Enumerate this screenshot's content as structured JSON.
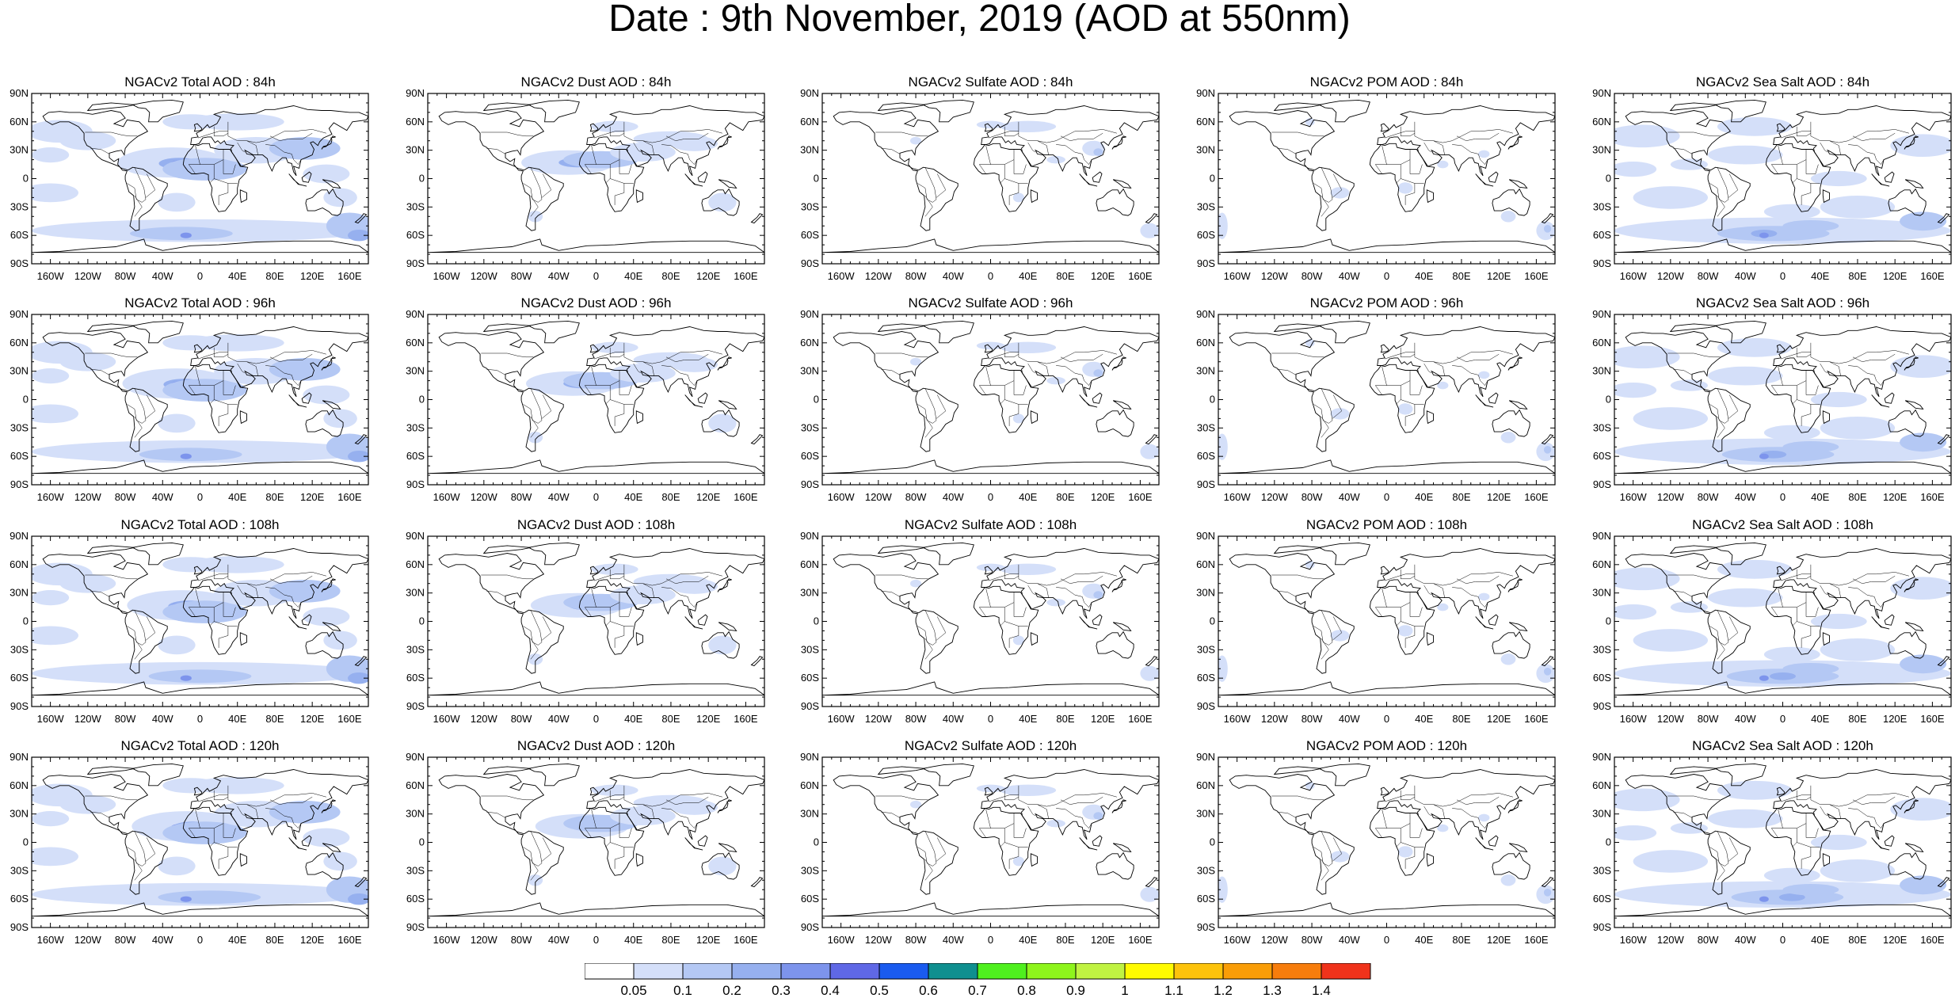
{
  "title": "Date : 9th November, 2019 (AOD at 550nm)",
  "lat_labels": [
    "90N",
    "60N",
    "30N",
    "0",
    "30S",
    "60S",
    "90S"
  ],
  "lon_labels": [
    "160W",
    "120W",
    "80W",
    "40W",
    "0",
    "40E",
    "80E",
    "120E",
    "160E"
  ],
  "rows": [
    {
      "hour": "84h",
      "titles": [
        "NGACv2 Total AOD : 84h",
        "NGACv2 Dust AOD : 84h",
        "NGACv2 Sulfate AOD : 84h",
        "NGACv2 POM AOD : 84h",
        "NGACv2 Sea Salt AOD : 84h"
      ]
    },
    {
      "hour": "96h",
      "titles": [
        "NGACv2 Total AOD : 96h",
        "NGACv2 Dust AOD : 96h",
        "NGACv2 Sulfate AOD : 96h",
        "NGACv2 POM AOD : 96h",
        "NGACv2 Sea Salt AOD : 96h"
      ]
    },
    {
      "hour": "108h",
      "titles": [
        "NGACv2 Total AOD : 108h",
        "NGACv2 Dust AOD : 108h",
        "NGACv2 Sulfate AOD : 108h",
        "NGACv2 POM AOD : 108h",
        "NGACv2 Sea Salt AOD : 108h"
      ]
    },
    {
      "hour": "120h",
      "titles": [
        "NGACv2 Total AOD : 120h",
        "NGACv2 Dust AOD : 120h",
        "NGACv2 Sulfate AOD : 120h",
        "NGACv2 POM AOD : 120h",
        "NGACv2 Sea Salt  AOD : 120h"
      ]
    }
  ],
  "colorbar": {
    "labels": [
      "0.05",
      "0.1",
      "0.2",
      "0.3",
      "0.4",
      "0.5",
      "0.6",
      "0.7",
      "0.8",
      "0.9",
      "1",
      "1.1",
      "1.2",
      "1.3",
      "1.4"
    ],
    "colors": [
      "#ffffff",
      "#d4dff9",
      "#b4c8f4",
      "#96b0ef",
      "#7d94ec",
      "#5f68e6",
      "#1a5bef",
      "#0f8f8f",
      "#4ff01e",
      "#8ef51c",
      "#c0f342",
      "#fffb00",
      "#fdc30b",
      "#f99d07",
      "#f77d0c",
      "#f0331b"
    ]
  }
}
